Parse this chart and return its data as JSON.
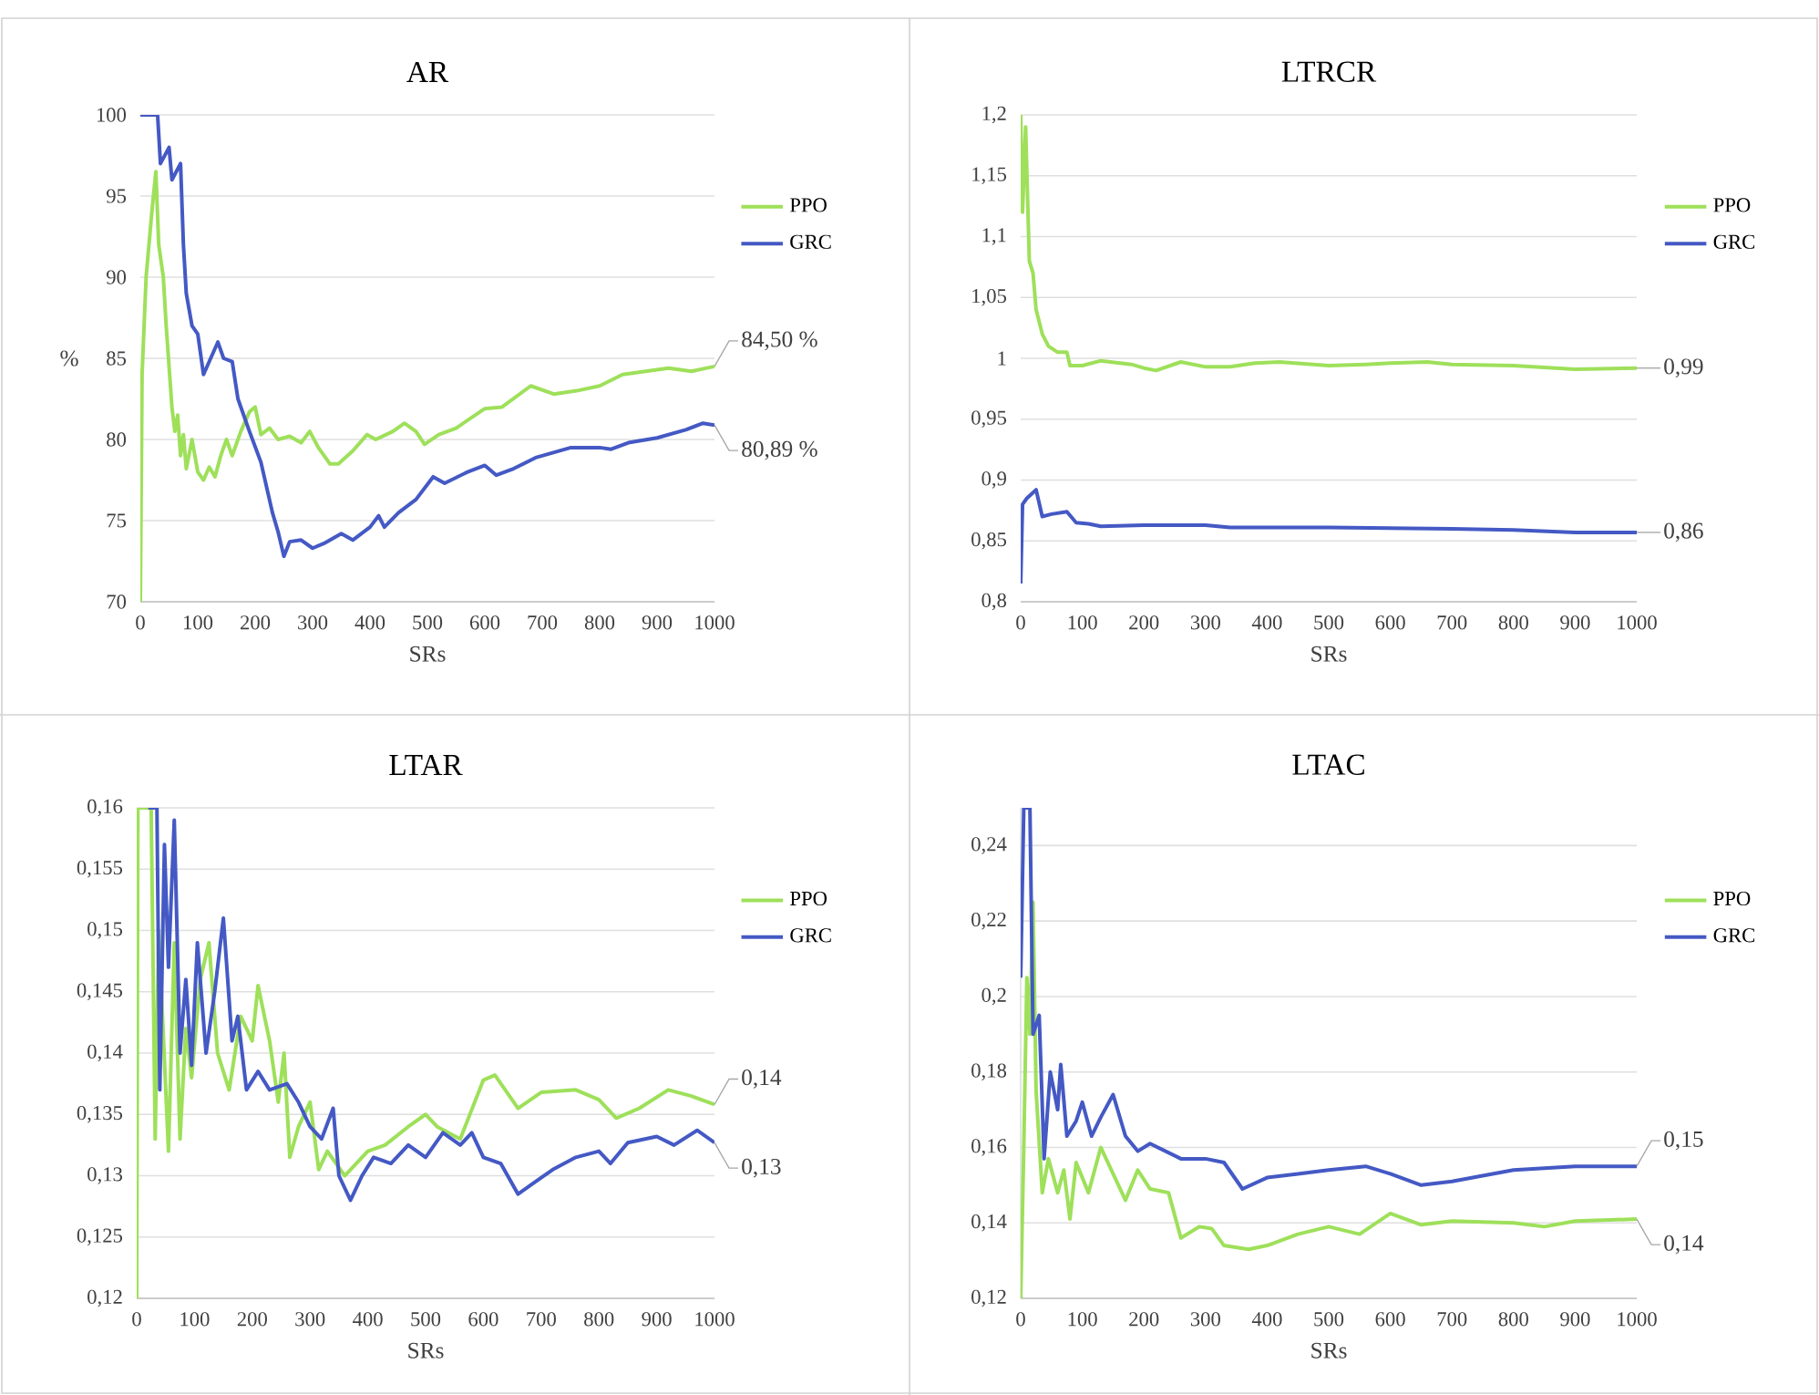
{
  "chart_data": [
    {
      "type": "line",
      "title": "AR",
      "xlabel": "SRs",
      "ylabel": "%",
      "xlim": [
        0,
        1000
      ],
      "ylim": [
        70,
        100
      ],
      "xticks": [
        0,
        100,
        200,
        300,
        400,
        500,
        600,
        700,
        800,
        900,
        1000
      ],
      "yticks": [
        70,
        75,
        80,
        85,
        90,
        95,
        100
      ],
      "grid": "y",
      "legend": "right",
      "series": [
        {
          "name": "PPO",
          "color": "#9ee05a",
          "x": [
            0,
            3,
            10,
            20,
            27,
            32,
            40,
            45,
            55,
            60,
            65,
            70,
            75,
            80,
            90,
            100,
            110,
            120,
            130,
            140,
            150,
            160,
            175,
            190,
            200,
            210,
            225,
            240,
            260,
            280,
            295,
            310,
            330,
            345,
            370,
            395,
            410,
            440,
            460,
            480,
            495,
            520,
            550,
            600,
            630,
            680,
            720,
            760,
            800,
            840,
            880,
            920,
            960,
            1000
          ],
          "values": [
            70,
            84,
            90,
            94,
            96.5,
            92,
            90,
            87,
            82,
            80.5,
            81.5,
            79,
            80.3,
            78.2,
            80,
            78,
            77.5,
            78.3,
            77.7,
            79,
            80,
            79,
            80.5,
            81.7,
            82,
            80.3,
            80.7,
            80,
            80.2,
            79.8,
            80.5,
            79.5,
            78.5,
            78.5,
            79.3,
            80.3,
            80,
            80.5,
            81,
            80.5,
            79.7,
            80.3,
            80.7,
            81.9,
            82,
            83.3,
            82.8,
            83,
            83.3,
            84,
            84.2,
            84.4,
            84.2,
            84.5
          ],
          "value_labels": [
            null,
            null,
            null,
            null,
            null,
            null,
            null,
            null,
            null,
            null,
            null,
            null,
            null,
            null,
            null,
            null,
            null,
            null,
            null,
            null,
            null,
            null,
            null,
            null,
            null,
            null,
            null,
            null,
            null,
            null,
            null,
            null,
            null,
            null,
            null,
            null,
            null,
            null,
            null,
            null,
            null,
            null,
            null,
            null,
            null,
            null,
            null,
            null,
            null,
            null,
            null,
            null,
            null,
            "84,50 %"
          ]
        },
        {
          "name": "GRC",
          "color": "#4459c4",
          "x": [
            0,
            30,
            35,
            50,
            55,
            70,
            75,
            80,
            90,
            100,
            110,
            120,
            135,
            145,
            160,
            170,
            190,
            210,
            230,
            240,
            250,
            260,
            280,
            300,
            320,
            350,
            370,
            400,
            415,
            425,
            450,
            480,
            510,
            530,
            570,
            600,
            620,
            650,
            690,
            750,
            800,
            820,
            850,
            900,
            950,
            980,
            1000
          ],
          "values": [
            100,
            100,
            97,
            98,
            96,
            97,
            92,
            89,
            87,
            86.5,
            84,
            84.8,
            86,
            85,
            84.8,
            82.5,
            80.5,
            78.6,
            75.5,
            74.3,
            72.8,
            73.7,
            73.8,
            73.3,
            73.6,
            74.2,
            73.8,
            74.6,
            75.3,
            74.6,
            75.5,
            76.3,
            77.7,
            77.3,
            78,
            78.4,
            77.8,
            78.2,
            78.9,
            79.5,
            79.5,
            79.4,
            79.8,
            80.1,
            80.6,
            81,
            80.89
          ],
          "value_labels": [
            null,
            null,
            null,
            null,
            null,
            null,
            null,
            null,
            null,
            null,
            null,
            null,
            null,
            null,
            null,
            null,
            null,
            null,
            null,
            null,
            null,
            null,
            null,
            null,
            null,
            null,
            null,
            null,
            null,
            null,
            null,
            null,
            null,
            null,
            null,
            null,
            null,
            null,
            null,
            null,
            null,
            null,
            null,
            null,
            null,
            null,
            "80,89 %"
          ]
        }
      ]
    },
    {
      "type": "line",
      "title": "LTRCR",
      "xlabel": "SRs",
      "xlim": [
        0,
        1000
      ],
      "ylim": [
        0.8,
        1.2
      ],
      "xticks": [
        0,
        100,
        200,
        300,
        400,
        500,
        600,
        700,
        800,
        900,
        1000
      ],
      "yticks": [
        {
          "value": 0.8,
          "label": "0,8"
        },
        {
          "value": 0.85,
          "label": "0,85"
        },
        {
          "value": 0.9,
          "label": "0,9"
        },
        {
          "value": 0.95,
          "label": "0,95"
        },
        1,
        {
          "value": 1.05,
          "label": "1,05"
        },
        {
          "value": 1.1,
          "label": "1,1"
        },
        {
          "value": 1.15,
          "label": "1,15"
        },
        {
          "value": 1.2,
          "label": "1,2"
        }
      ],
      "grid": "y",
      "legend": "right",
      "series": [
        {
          "name": "PPO",
          "color": "#9ee05a",
          "x": [
            0,
            3,
            8,
            14,
            20,
            25,
            35,
            45,
            60,
            75,
            80,
            100,
            130,
            180,
            200,
            220,
            260,
            300,
            340,
            380,
            420,
            500,
            560,
            600,
            660,
            700,
            800,
            900,
            1000
          ],
          "values": [
            1.2,
            1.12,
            1.19,
            1.08,
            1.07,
            1.04,
            1.02,
            1.01,
            1.005,
            1.005,
            0.994,
            0.994,
            0.998,
            0.995,
            0.992,
            0.99,
            0.997,
            0.993,
            0.993,
            0.996,
            0.997,
            0.994,
            0.995,
            0.996,
            0.997,
            0.995,
            0.994,
            0.991,
            0.992
          ],
          "value_labels": [
            null,
            null,
            null,
            null,
            null,
            null,
            null,
            null,
            null,
            null,
            null,
            null,
            null,
            null,
            null,
            null,
            null,
            null,
            null,
            null,
            null,
            null,
            null,
            null,
            null,
            null,
            null,
            null,
            "0,99"
          ]
        },
        {
          "name": "GRC",
          "color": "#4459c4",
          "x": [
            0,
            3,
            10,
            25,
            35,
            50,
            75,
            90,
            110,
            130,
            200,
            300,
            340,
            500,
            700,
            800,
            900,
            1000
          ],
          "values": [
            0.815,
            0.88,
            0.885,
            0.892,
            0.87,
            0.872,
            0.874,
            0.865,
            0.864,
            0.862,
            0.863,
            0.863,
            0.861,
            0.861,
            0.86,
            0.859,
            0.857,
            0.857
          ],
          "value_labels": [
            null,
            null,
            null,
            null,
            null,
            null,
            null,
            null,
            null,
            null,
            null,
            null,
            null,
            null,
            null,
            null,
            null,
            "0,86"
          ]
        }
      ]
    },
    {
      "type": "line",
      "title": "LTAR",
      "xlabel": "SRs",
      "xlim": [
        0,
        1000
      ],
      "ylim": [
        0.12,
        0.16
      ],
      "xticks": [
        0,
        100,
        200,
        300,
        400,
        500,
        600,
        700,
        800,
        900,
        1000
      ],
      "yticks": [
        {
          "value": 0.12,
          "label": "0,12"
        },
        {
          "value": 0.125,
          "label": "0,125"
        },
        {
          "value": 0.13,
          "label": "0,13"
        },
        {
          "value": 0.135,
          "label": "0,135"
        },
        {
          "value": 0.14,
          "label": "0,14"
        },
        {
          "value": 0.145,
          "label": "0,145"
        },
        {
          "value": 0.15,
          "label": "0,15"
        },
        {
          "value": 0.155,
          "label": "0,155"
        },
        {
          "value": 0.16,
          "label": "0,16"
        }
      ],
      "grid": "y",
      "legend": "right",
      "series": [
        {
          "name": "PPO",
          "color": "#9ee05a",
          "x": [
            0,
            2,
            25,
            32,
            38,
            55,
            65,
            75,
            85,
            95,
            110,
            125,
            140,
            160,
            180,
            200,
            210,
            230,
            245,
            255,
            265,
            280,
            300,
            315,
            330,
            360,
            380,
            400,
            430,
            470,
            500,
            520,
            560,
            600,
            620,
            660,
            700,
            760,
            800,
            830,
            870,
            920,
            960,
            1000
          ],
          "values": [
            0.12,
            0.16,
            0.16,
            0.133,
            0.15,
            0.132,
            0.149,
            0.133,
            0.142,
            0.138,
            0.146,
            0.149,
            0.14,
            0.137,
            0.143,
            0.141,
            0.1455,
            0.141,
            0.136,
            0.14,
            0.1315,
            0.134,
            0.136,
            0.1305,
            0.132,
            0.13,
            0.131,
            0.132,
            0.1325,
            0.134,
            0.135,
            0.134,
            0.133,
            0.1378,
            0.1382,
            0.1355,
            0.1368,
            0.137,
            0.1362,
            0.1347,
            0.1355,
            0.137,
            0.1365,
            0.1358
          ],
          "value_labels": [
            null,
            null,
            null,
            null,
            null,
            null,
            null,
            null,
            null,
            null,
            null,
            null,
            null,
            null,
            null,
            null,
            null,
            null,
            null,
            null,
            null,
            null,
            null,
            null,
            null,
            null,
            null,
            null,
            null,
            null,
            null,
            null,
            null,
            null,
            null,
            null,
            null,
            null,
            null,
            null,
            null,
            null,
            null,
            "0,14"
          ]
        },
        {
          "name": "GRC",
          "color": "#4459c4",
          "x": [
            20,
            35,
            40,
            48,
            55,
            65,
            75,
            85,
            95,
            105,
            120,
            135,
            150,
            165,
            175,
            190,
            210,
            230,
            260,
            280,
            300,
            320,
            340,
            350,
            370,
            390,
            410,
            440,
            470,
            500,
            530,
            560,
            580,
            600,
            630,
            660,
            690,
            720,
            760,
            800,
            820,
            850,
            900,
            930,
            970,
            1000
          ],
          "values": [
            0.16,
            0.16,
            0.137,
            0.157,
            0.147,
            0.159,
            0.14,
            0.146,
            0.139,
            0.149,
            0.14,
            0.145,
            0.151,
            0.141,
            0.143,
            0.137,
            0.1385,
            0.137,
            0.1375,
            0.136,
            0.134,
            0.133,
            0.1355,
            0.13,
            0.128,
            0.13,
            0.1315,
            0.131,
            0.1325,
            0.1315,
            0.1335,
            0.1325,
            0.1335,
            0.1315,
            0.131,
            0.1285,
            0.1295,
            0.1305,
            0.1315,
            0.132,
            0.131,
            0.1327,
            0.1332,
            0.1325,
            0.1337,
            0.1327
          ],
          "value_labels": [
            null,
            null,
            null,
            null,
            null,
            null,
            null,
            null,
            null,
            null,
            null,
            null,
            null,
            null,
            null,
            null,
            null,
            null,
            null,
            null,
            null,
            null,
            null,
            null,
            null,
            null,
            null,
            null,
            null,
            null,
            null,
            null,
            null,
            null,
            null,
            null,
            null,
            null,
            null,
            null,
            null,
            null,
            null,
            null,
            null,
            "0,13"
          ]
        }
      ]
    },
    {
      "type": "line",
      "title": "LTAC",
      "xlabel": "SRs",
      "xlim": [
        0,
        1000
      ],
      "ylim": [
        0.12,
        0.25
      ],
      "xticks": [
        0,
        100,
        200,
        300,
        400,
        500,
        600,
        700,
        800,
        900,
        1000
      ],
      "yticks": [
        {
          "value": 0.12,
          "label": "0,12"
        },
        {
          "value": 0.14,
          "label": "0,14"
        },
        {
          "value": 0.16,
          "label": "0,16"
        },
        {
          "value": 0.18,
          "label": "0,18"
        },
        {
          "value": 0.2,
          "label": "0,2"
        },
        {
          "value": 0.22,
          "label": "0,22"
        },
        {
          "value": 0.24,
          "label": "0,24"
        }
      ],
      "grid": "y",
      "legend": "right",
      "series": [
        {
          "name": "PPO",
          "color": "#9ee05a",
          "x": [
            0,
            5,
            10,
            15,
            20,
            25,
            35,
            45,
            60,
            70,
            80,
            90,
            110,
            130,
            150,
            170,
            190,
            210,
            240,
            260,
            290,
            310,
            330,
            370,
            400,
            450,
            500,
            550,
            600,
            650,
            700,
            800,
            850,
            900,
            1000
          ],
          "values": [
            0.12,
            0.16,
            0.205,
            0.19,
            0.225,
            0.175,
            0.148,
            0.157,
            0.148,
            0.154,
            0.141,
            0.156,
            0.148,
            0.16,
            0.153,
            0.146,
            0.154,
            0.149,
            0.148,
            0.136,
            0.139,
            0.1385,
            0.134,
            0.133,
            0.134,
            0.137,
            0.139,
            0.137,
            0.1425,
            0.1395,
            0.1405,
            0.14,
            0.139,
            0.1405,
            0.141
          ],
          "value_labels": [
            null,
            null,
            null,
            null,
            null,
            null,
            null,
            null,
            null,
            null,
            null,
            null,
            null,
            null,
            null,
            null,
            null,
            null,
            null,
            null,
            null,
            null,
            null,
            null,
            null,
            null,
            null,
            null,
            null,
            null,
            null,
            null,
            null,
            null,
            "0,14"
          ]
        },
        {
          "name": "GRC",
          "color": "#4459c4",
          "x": [
            0,
            5,
            15,
            20,
            30,
            38,
            48,
            60,
            65,
            75,
            90,
            100,
            115,
            130,
            150,
            170,
            190,
            210,
            260,
            300,
            330,
            360,
            400,
            450,
            500,
            560,
            600,
            650,
            700,
            800,
            900,
            950,
            1000
          ],
          "values": [
            0.205,
            0.25,
            0.25,
            0.19,
            0.195,
            0.157,
            0.18,
            0.17,
            0.182,
            0.163,
            0.167,
            0.172,
            0.163,
            0.168,
            0.174,
            0.163,
            0.159,
            0.161,
            0.157,
            0.157,
            0.156,
            0.149,
            0.152,
            0.153,
            0.154,
            0.155,
            0.153,
            0.15,
            0.151,
            0.154,
            0.155,
            0.155,
            0.155
          ],
          "value_labels": [
            null,
            null,
            null,
            null,
            null,
            null,
            null,
            null,
            null,
            null,
            null,
            null,
            null,
            null,
            null,
            null,
            null,
            null,
            null,
            null,
            null,
            null,
            null,
            null,
            null,
            null,
            null,
            null,
            null,
            null,
            null,
            null,
            "0,15"
          ]
        }
      ]
    }
  ]
}
